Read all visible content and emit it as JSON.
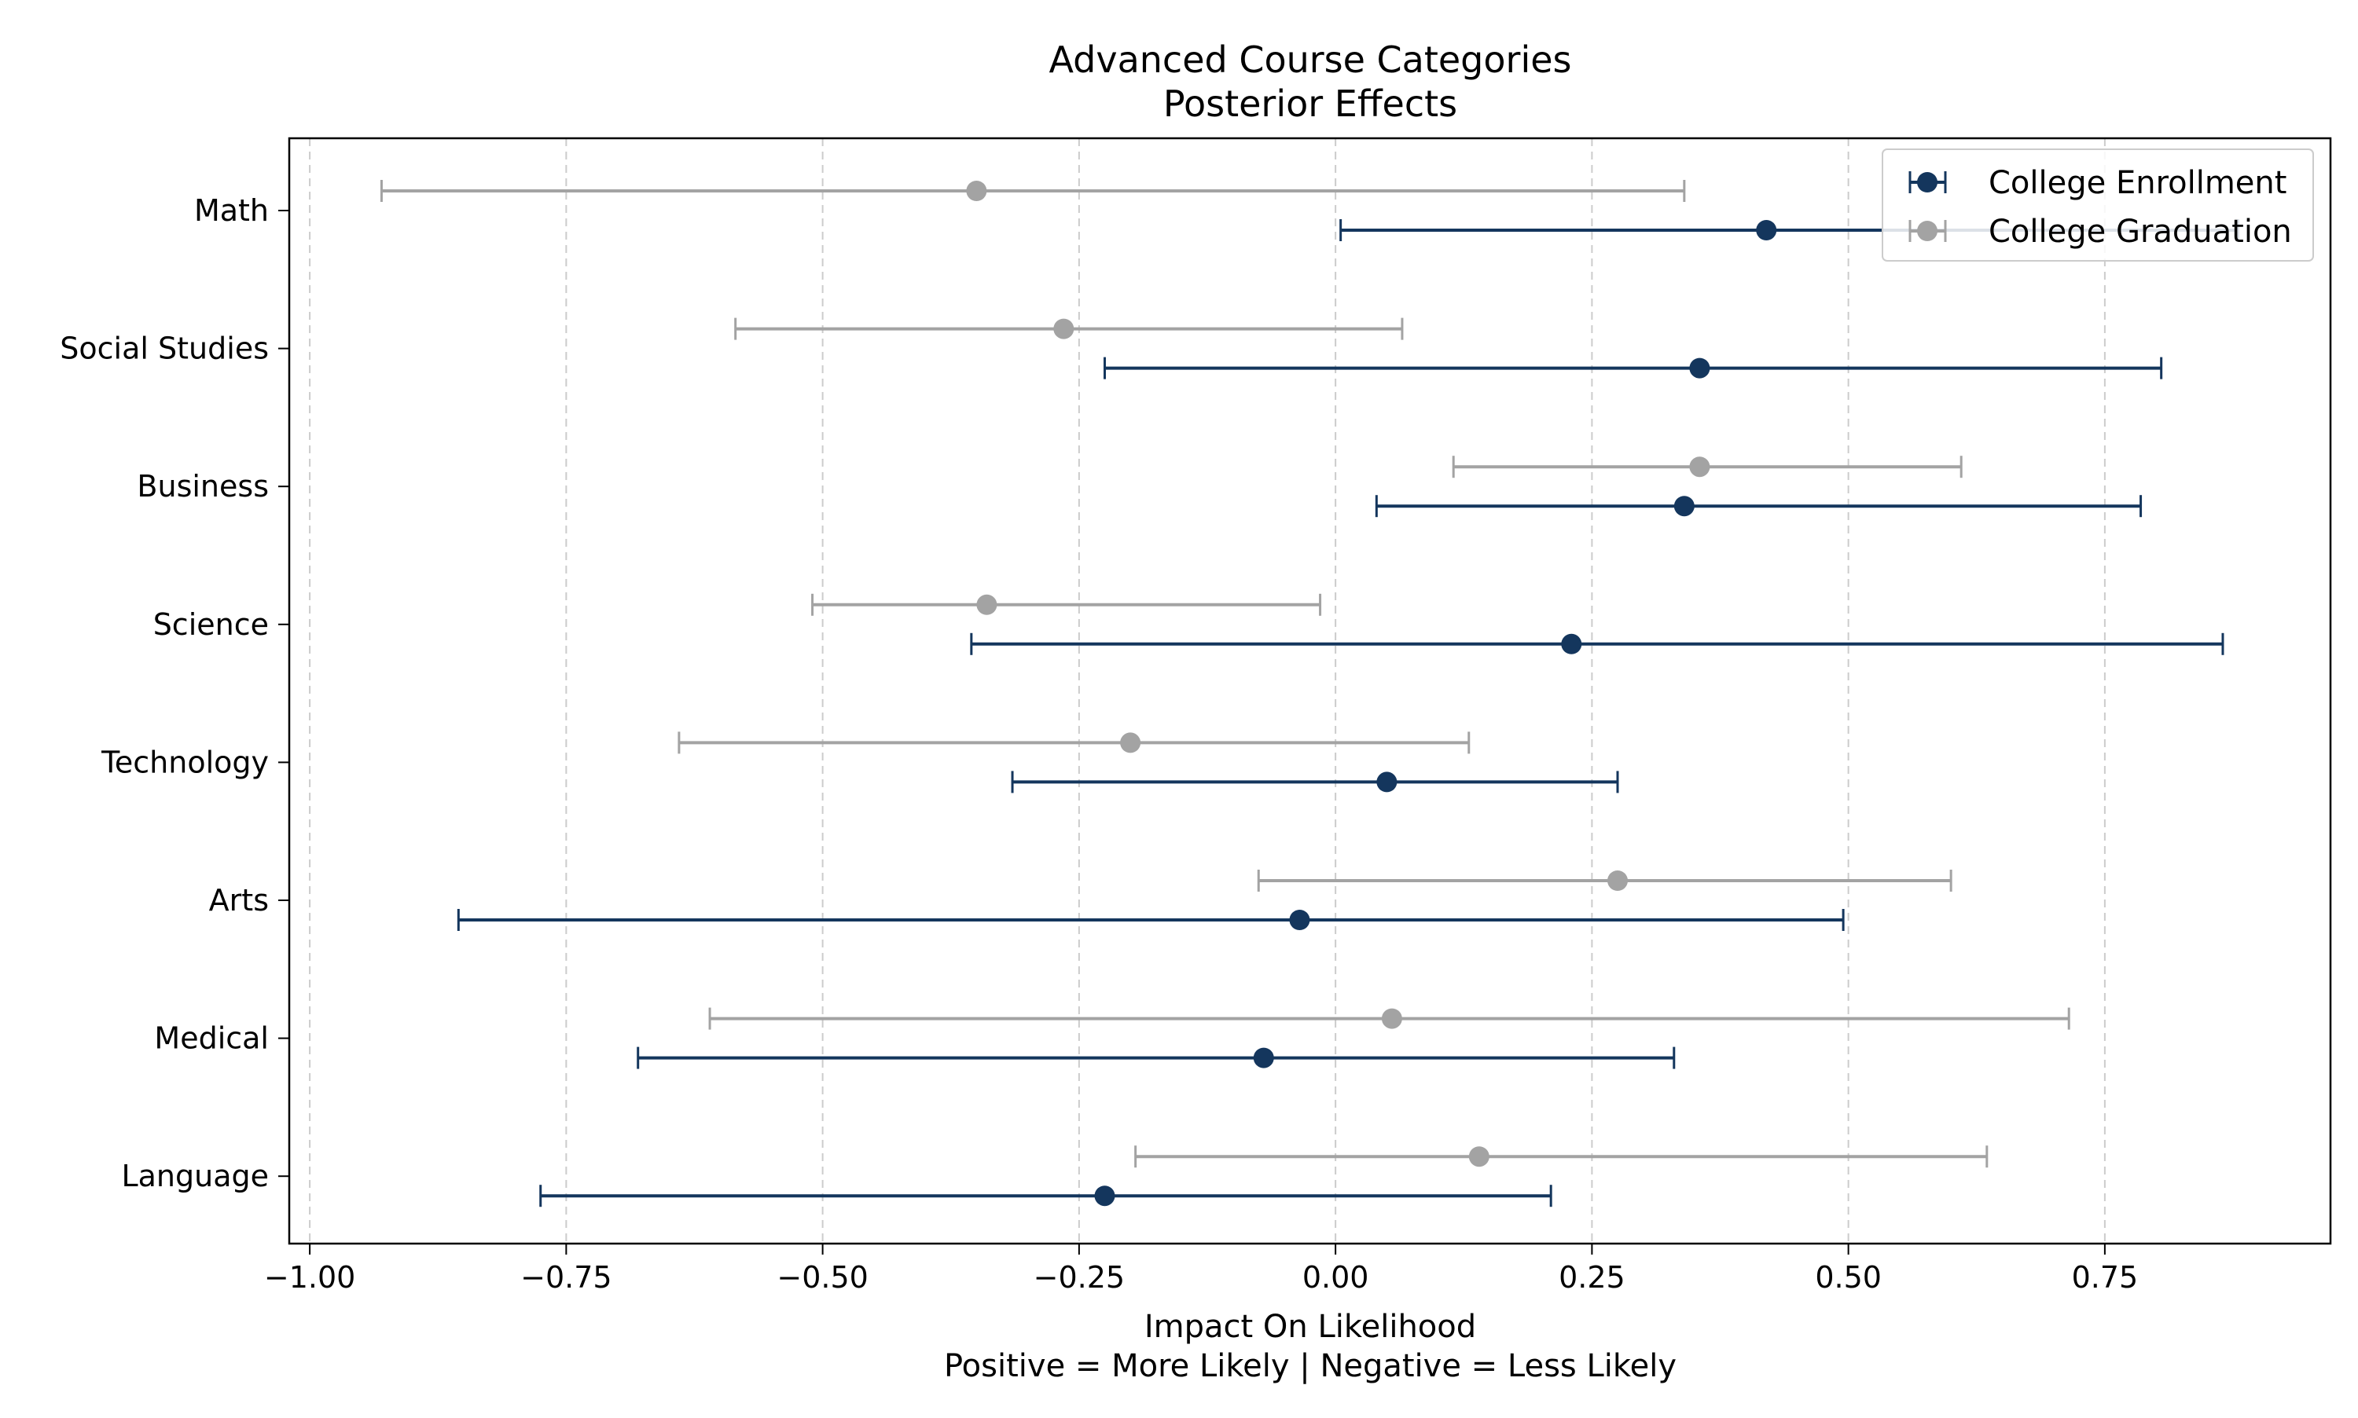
{
  "chart_data": {
    "type": "errorbar",
    "title": "Advanced Course Categories",
    "subtitle": "Posterior Effects",
    "xlabel": "Impact On Likelihood",
    "xlabel_sub": "Positive = More Likely | Negative = Less Likely",
    "ylabel": "",
    "xlim": [
      -1.02,
      0.97
    ],
    "x_ticks": [
      -1.0,
      -0.75,
      -0.5,
      -0.25,
      0.0,
      0.25,
      0.5,
      0.75
    ],
    "x_tick_labels": [
      "−1.00",
      "−0.75",
      "−0.50",
      "−0.25",
      "0.00",
      "0.25",
      "0.50",
      "0.75"
    ],
    "grid": "vertical-dashed",
    "legend_position": "top-right",
    "categories": [
      "Math",
      "Social Studies",
      "Business",
      "Science",
      "Technology",
      "Arts",
      "Medical",
      "Language"
    ],
    "series": [
      {
        "name": "College Enrollment",
        "color": "#14365d",
        "points": [
          {
            "category": "Math",
            "value": 0.42,
            "low": 0.005,
            "high": 0.88
          },
          {
            "category": "Social Studies",
            "value": 0.355,
            "low": -0.225,
            "high": 0.805
          },
          {
            "category": "Business",
            "value": 0.34,
            "low": 0.04,
            "high": 0.785
          },
          {
            "category": "Science",
            "value": 0.23,
            "low": -0.355,
            "high": 0.865
          },
          {
            "category": "Technology",
            "value": 0.05,
            "low": -0.315,
            "high": 0.275
          },
          {
            "category": "Arts",
            "value": -0.035,
            "low": -0.855,
            "high": 0.495
          },
          {
            "category": "Medical",
            "value": -0.07,
            "low": -0.68,
            "high": 0.33
          },
          {
            "category": "Language",
            "value": -0.225,
            "low": -0.775,
            "high": 0.21
          }
        ]
      },
      {
        "name": "College Graduation",
        "color": "#a3a3a3",
        "points": [
          {
            "category": "Math",
            "value": -0.35,
            "low": -0.93,
            "high": 0.34
          },
          {
            "category": "Social Studies",
            "value": -0.265,
            "low": -0.585,
            "high": 0.065
          },
          {
            "category": "Business",
            "value": 0.355,
            "low": 0.115,
            "high": 0.61
          },
          {
            "category": "Science",
            "value": -0.34,
            "low": -0.51,
            "high": -0.015
          },
          {
            "category": "Technology",
            "value": -0.2,
            "low": -0.64,
            "high": 0.13
          },
          {
            "category": "Arts",
            "value": 0.275,
            "low": -0.075,
            "high": 0.6
          },
          {
            "category": "Medical",
            "value": 0.055,
            "low": -0.61,
            "high": 0.715
          },
          {
            "category": "Language",
            "value": 0.14,
            "low": -0.195,
            "high": 0.635
          }
        ]
      }
    ]
  }
}
